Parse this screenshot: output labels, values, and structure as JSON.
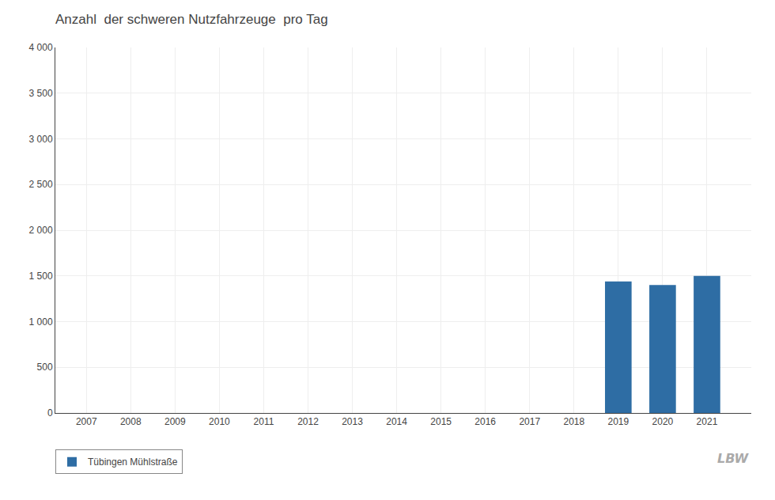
{
  "chart_data": {
    "type": "bar",
    "title": "Anzahl  der schweren Nutzfahrzeuge  pro Tag",
    "x": [
      2007,
      2008,
      2009,
      2010,
      2011,
      2012,
      2013,
      2014,
      2015,
      2016,
      2017,
      2018,
      2019,
      2020,
      2021
    ],
    "series": [
      {
        "name": "Tübingen Mühlstraße",
        "color": "#2E6DA4",
        "values": [
          0,
          0,
          0,
          0,
          0,
          0,
          0,
          0,
          0,
          0,
          0,
          0,
          1440,
          1400,
          1500
        ]
      }
    ],
    "xlim": [
      2006.3,
      2022.0
    ],
    "xticks": [
      2007,
      2008,
      2009,
      2010,
      2011,
      2012,
      2013,
      2014,
      2015,
      2016,
      2017,
      2018,
      2019,
      2020,
      2021
    ],
    "ylim": [
      0,
      4000
    ],
    "yticks": [
      0,
      500,
      {
        "value": 1000,
        "label": "1 000"
      },
      {
        "value": 1500,
        "label": "1 500"
      },
      {
        "value": 2000,
        "label": "2 000"
      },
      {
        "value": 2500,
        "label": "2 500"
      },
      {
        "value": 3000,
        "label": "3 000"
      },
      {
        "value": 3500,
        "label": "3 500"
      },
      {
        "value": 4000,
        "label": "4 000"
      }
    ],
    "grid": true,
    "legend": "lower left",
    "annotations": [
      "LBW"
    ]
  }
}
